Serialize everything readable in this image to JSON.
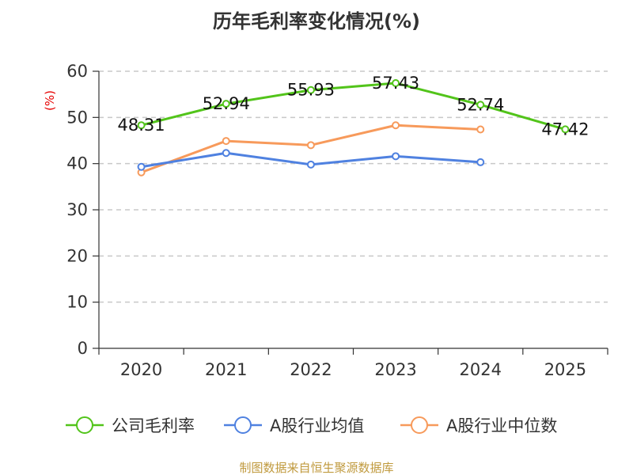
{
  "chart_data": {
    "type": "line",
    "title": "历年毛利率变化情况(%)",
    "ylabel": "(%)",
    "xlabel": "",
    "categories": [
      "2020",
      "2021",
      "2022",
      "2023",
      "2024",
      "2025"
    ],
    "ylim": [
      0,
      60
    ],
    "yticks": [
      0,
      10,
      20,
      30,
      40,
      50,
      60
    ],
    "grid": true,
    "legend_position": "bottom",
    "series": [
      {
        "name": "公司毛利率",
        "color": "#52c41a",
        "values": [
          48.31,
          52.94,
          55.93,
          57.43,
          52.74,
          47.42
        ],
        "labels": [
          "48.31",
          "52.94",
          "55.93",
          "57.43",
          "52.74",
          "47.42"
        ]
      },
      {
        "name": "A股行业均值",
        "color": "#4f81e0",
        "values": [
          39.3,
          42.3,
          39.8,
          41.6,
          40.3,
          null
        ]
      },
      {
        "name": "A股行业中位数",
        "color": "#f79a5b",
        "values": [
          38.1,
          44.9,
          44.0,
          48.3,
          47.4,
          null
        ]
      }
    ]
  },
  "source_text": "制图数据来自恒生聚源数据库"
}
